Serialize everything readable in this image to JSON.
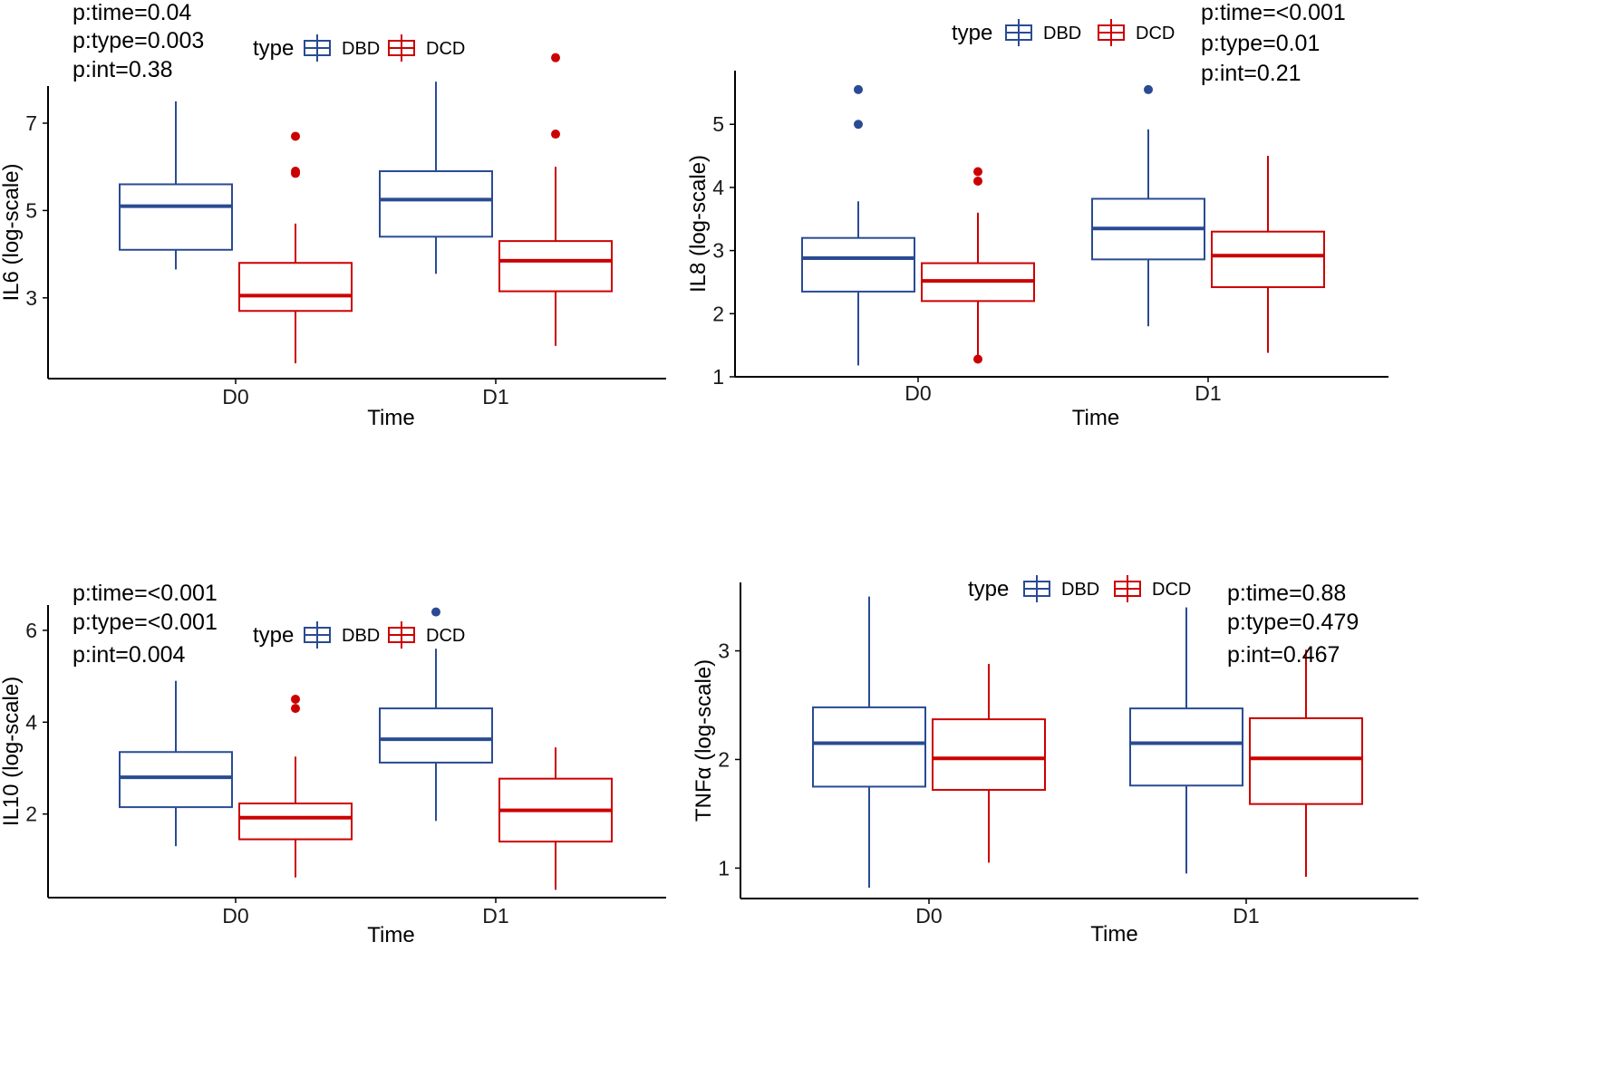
{
  "colors": {
    "DBD": "#2a4b93",
    "DCD": "#cc0000",
    "axis": "#000000"
  },
  "chart_data": [
    {
      "type": "box",
      "title": "",
      "xlabel": "Time",
      "ylabel": "IL6 (log-scale)",
      "categories": [
        "D0",
        "D1"
      ],
      "yticks": [
        3,
        5,
        7
      ],
      "ylim": [
        1.15,
        7.85
      ],
      "legend": {
        "title": "type",
        "items": [
          "DBD",
          "DCD"
        ]
      },
      "annotations": [
        "p:time=0.04",
        "p:type=0.003",
        "p:int=0.38"
      ],
      "series": [
        {
          "name": "DBD",
          "boxes": [
            {
              "category": "D0",
              "min": 3.65,
              "q1": 4.1,
              "median": 5.1,
              "q3": 5.6,
              "max": 7.5,
              "outliers": []
            },
            {
              "category": "D1",
              "min": 3.55,
              "q1": 4.4,
              "median": 5.25,
              "q3": 5.9,
              "max": 7.95,
              "outliers": []
            }
          ]
        },
        {
          "name": "DCD",
          "boxes": [
            {
              "category": "D0",
              "min": 1.5,
              "q1": 2.7,
              "median": 3.05,
              "q3": 3.8,
              "max": 4.7,
              "outliers": [
                5.85,
                5.9,
                6.7
              ]
            },
            {
              "category": "D1",
              "min": 1.9,
              "q1": 3.15,
              "median": 3.85,
              "q3": 4.3,
              "max": 6.0,
              "outliers": [
                6.75,
                8.5
              ]
            }
          ]
        }
      ]
    },
    {
      "type": "box",
      "title": "",
      "xlabel": "Time",
      "ylabel": "IL8 (log-scale)",
      "categories": [
        "D0",
        "D1"
      ],
      "yticks": [
        1,
        2,
        3,
        4,
        5
      ],
      "ylim": [
        1.0,
        5.85
      ],
      "legend": {
        "title": "type",
        "items": [
          "DBD",
          "DCD"
        ]
      },
      "annotations": [
        "p:time=<0.001",
        "p:type=0.01",
        "p:int=0.21"
      ],
      "series": [
        {
          "name": "DBD",
          "boxes": [
            {
              "category": "D0",
              "min": 1.18,
              "q1": 2.35,
              "median": 2.88,
              "q3": 3.2,
              "max": 3.78,
              "outliers": [
                5.0,
                5.55
              ]
            },
            {
              "category": "D1",
              "min": 1.8,
              "q1": 2.86,
              "median": 3.35,
              "q3": 3.82,
              "max": 4.92,
              "outliers": [
                5.55
              ]
            }
          ]
        },
        {
          "name": "DCD",
          "boxes": [
            {
              "category": "D0",
              "min": 1.3,
              "q1": 2.2,
              "median": 2.52,
              "q3": 2.8,
              "max": 3.6,
              "outliers": [
                4.1,
                4.25,
                1.28
              ]
            },
            {
              "category": "D1",
              "min": 1.38,
              "q1": 2.42,
              "median": 2.92,
              "q3": 3.3,
              "max": 4.5,
              "outliers": []
            }
          ]
        }
      ]
    },
    {
      "type": "box",
      "title": "",
      "xlabel": "Time",
      "ylabel": "IL10 (log-scale)",
      "categories": [
        "D0",
        "D1"
      ],
      "yticks": [
        2,
        4,
        6
      ],
      "ylim": [
        0.18,
        6.55
      ],
      "legend": {
        "title": "type",
        "items": [
          "DBD",
          "DCD"
        ]
      },
      "annotations": [
        "p:time=<0.001",
        "p:type=<0.001",
        "p:int=0.004"
      ],
      "series": [
        {
          "name": "DBD",
          "boxes": [
            {
              "category": "D0",
              "min": 1.3,
              "q1": 2.15,
              "median": 2.8,
              "q3": 3.35,
              "max": 4.9,
              "outliers": []
            },
            {
              "category": "D1",
              "min": 1.85,
              "q1": 3.12,
              "median": 3.63,
              "q3": 4.3,
              "max": 5.6,
              "outliers": [
                6.4
              ]
            }
          ]
        },
        {
          "name": "DCD",
          "boxes": [
            {
              "category": "D0",
              "min": 0.62,
              "q1": 1.45,
              "median": 1.92,
              "q3": 2.23,
              "max": 3.25,
              "outliers": [
                4.3,
                4.5
              ]
            },
            {
              "category": "D1",
              "min": 0.35,
              "q1": 1.4,
              "median": 2.08,
              "q3": 2.77,
              "max": 3.45,
              "outliers": []
            }
          ]
        }
      ]
    },
    {
      "type": "box",
      "title": "",
      "xlabel": "Time",
      "ylabel": "TNFα (log-scale)",
      "categories": [
        "D0",
        "D1"
      ],
      "yticks": [
        1,
        2,
        3
      ],
      "ylim": [
        0.72,
        3.63
      ],
      "legend": {
        "title": "type",
        "items": [
          "DBD",
          "DCD"
        ]
      },
      "annotations": [
        "p:time=0.88",
        "p:type=0.479",
        "p:int=0.467"
      ],
      "series": [
        {
          "name": "DBD",
          "boxes": [
            {
              "category": "D0",
              "min": 0.82,
              "q1": 1.75,
              "median": 2.15,
              "q3": 2.48,
              "max": 3.5,
              "outliers": []
            },
            {
              "category": "D1",
              "min": 0.95,
              "q1": 1.76,
              "median": 2.15,
              "q3": 2.47,
              "max": 3.4,
              "outliers": []
            }
          ]
        },
        {
          "name": "DCD",
          "boxes": [
            {
              "category": "D0",
              "min": 1.05,
              "q1": 1.72,
              "median": 2.01,
              "q3": 2.37,
              "max": 2.88,
              "outliers": []
            },
            {
              "category": "D1",
              "min": 0.92,
              "q1": 1.59,
              "median": 2.01,
              "q3": 2.38,
              "max": 3.01,
              "outliers": []
            }
          ]
        }
      ]
    }
  ]
}
